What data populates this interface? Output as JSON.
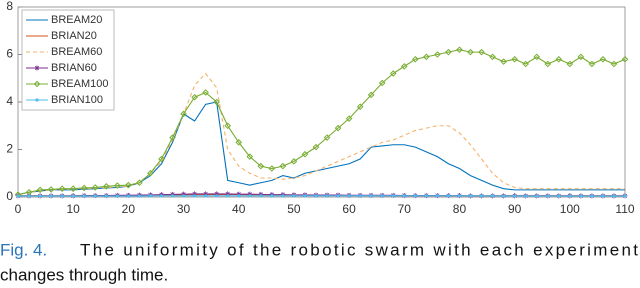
{
  "chart_data": {
    "type": "line",
    "figure_label": "Fig. 4.",
    "caption_lines": [
      "The uniformity of the robotic swarm with each experiment",
      "changes through time."
    ],
    "x": [
      0,
      2,
      4,
      6,
      8,
      10,
      12,
      14,
      16,
      18,
      20,
      22,
      24,
      26,
      28,
      30,
      32,
      34,
      36,
      38,
      40,
      42,
      44,
      46,
      48,
      50,
      52,
      54,
      56,
      58,
      60,
      62,
      64,
      66,
      68,
      70,
      72,
      74,
      76,
      78,
      80,
      82,
      84,
      86,
      88,
      90,
      92,
      94,
      96,
      98,
      100,
      102,
      104,
      106,
      108,
      110
    ],
    "xlim": [
      0,
      110
    ],
    "xticks": [
      0,
      10,
      20,
      30,
      40,
      50,
      60,
      70,
      80,
      90,
      100,
      110
    ],
    "ylim": [
      0,
      8
    ],
    "yticks": [
      0,
      2,
      4,
      6,
      8
    ],
    "legend": "upper-left",
    "series": [
      {
        "name": "BREAM20",
        "color": "#0072bd",
        "dash": false,
        "marker": null,
        "values": [
          0.1,
          0.2,
          0.25,
          0.3,
          0.3,
          0.3,
          0.33,
          0.35,
          0.38,
          0.4,
          0.45,
          0.6,
          0.9,
          1.4,
          2.3,
          3.5,
          3.2,
          3.9,
          4.0,
          0.7,
          0.6,
          0.5,
          0.6,
          0.7,
          0.9,
          0.8,
          1.0,
          1.1,
          1.2,
          1.3,
          1.4,
          1.6,
          2.1,
          2.15,
          2.2,
          2.2,
          2.1,
          1.9,
          1.7,
          1.4,
          1.2,
          0.9,
          0.7,
          0.5,
          0.35,
          0.3,
          0.3,
          0.3,
          0.3,
          0.3,
          0.3,
          0.3,
          0.3,
          0.3,
          0.3,
          0.3
        ]
      },
      {
        "name": "BRIAN20",
        "color": "#d95319",
        "dash": false,
        "marker": null,
        "values": [
          0.05,
          0.05,
          0.05,
          0.05,
          0.05,
          0.05,
          0.05,
          0.05,
          0.05,
          0.05,
          0.05,
          0.06,
          0.06,
          0.07,
          0.08,
          0.09,
          0.1,
          0.1,
          0.1,
          0.1,
          0.1,
          0.09,
          0.09,
          0.08,
          0.08,
          0.07,
          0.07,
          0.07,
          0.06,
          0.06,
          0.06,
          0.06,
          0.06,
          0.05,
          0.05,
          0.05,
          0.05,
          0.05,
          0.05,
          0.05,
          0.05,
          0.05,
          0.05,
          0.05,
          0.05,
          0.05,
          0.05,
          0.05,
          0.05,
          0.05,
          0.05,
          0.05,
          0.05,
          0.05,
          0.05,
          0.05
        ]
      },
      {
        "name": "BREAM60",
        "color": "#f4b26b",
        "dash": true,
        "marker": null,
        "values": [
          0.1,
          0.2,
          0.25,
          0.3,
          0.32,
          0.33,
          0.35,
          0.37,
          0.4,
          0.42,
          0.45,
          0.6,
          1.0,
          1.5,
          2.4,
          3.5,
          4.7,
          5.2,
          4.6,
          2.0,
          1.3,
          1.0,
          0.8,
          0.8,
          0.75,
          0.8,
          0.9,
          1.1,
          1.3,
          1.5,
          1.7,
          1.9,
          2.1,
          2.3,
          2.4,
          2.6,
          2.8,
          2.9,
          3.0,
          3.0,
          2.7,
          2.2,
          1.6,
          1.0,
          0.6,
          0.4,
          0.35,
          0.35,
          0.35,
          0.35,
          0.35,
          0.35,
          0.35,
          0.35,
          0.35,
          0.35
        ]
      },
      {
        "name": "BRIAN60",
        "color": "#7e2f8e",
        "dash": false,
        "marker": "asterisk",
        "values": [
          0.05,
          0.05,
          0.05,
          0.05,
          0.05,
          0.05,
          0.06,
          0.06,
          0.06,
          0.07,
          0.07,
          0.08,
          0.09,
          0.1,
          0.11,
          0.12,
          0.13,
          0.13,
          0.13,
          0.13,
          0.12,
          0.12,
          0.11,
          0.1,
          0.1,
          0.09,
          0.09,
          0.08,
          0.08,
          0.08,
          0.07,
          0.07,
          0.07,
          0.07,
          0.07,
          0.06,
          0.06,
          0.06,
          0.06,
          0.06,
          0.06,
          0.05,
          0.05,
          0.05,
          0.05,
          0.05,
          0.05,
          0.05,
          0.05,
          0.05,
          0.05,
          0.05,
          0.05,
          0.05,
          0.05,
          0.05
        ]
      },
      {
        "name": "BREAM100",
        "color": "#77ac30",
        "dash": false,
        "marker": "diamond",
        "values": [
          0.1,
          0.2,
          0.3,
          0.32,
          0.35,
          0.35,
          0.38,
          0.4,
          0.45,
          0.48,
          0.5,
          0.6,
          1.0,
          1.6,
          2.5,
          3.5,
          4.2,
          4.4,
          4.0,
          3.0,
          2.3,
          1.7,
          1.3,
          1.2,
          1.3,
          1.5,
          1.8,
          2.1,
          2.5,
          2.9,
          3.3,
          3.8,
          4.3,
          4.8,
          5.2,
          5.5,
          5.8,
          5.9,
          6.0,
          6.1,
          6.2,
          6.1,
          6.1,
          5.9,
          5.7,
          5.8,
          5.6,
          5.9,
          5.6,
          5.8,
          5.6,
          5.9,
          5.6,
          5.8,
          5.6,
          5.8
        ]
      },
      {
        "name": "BRIAN100",
        "color": "#4dbeee",
        "dash": false,
        "marker": "dot",
        "values": [
          0.04,
          0.04,
          0.04,
          0.04,
          0.04,
          0.04,
          0.04,
          0.04,
          0.04,
          0.04,
          0.04,
          0.04,
          0.05,
          0.05,
          0.05,
          0.05,
          0.05,
          0.05,
          0.05,
          0.05,
          0.05,
          0.05,
          0.05,
          0.05,
          0.05,
          0.05,
          0.05,
          0.05,
          0.05,
          0.05,
          0.05,
          0.05,
          0.05,
          0.05,
          0.05,
          0.05,
          0.05,
          0.05,
          0.05,
          0.05,
          0.05,
          0.05,
          0.05,
          0.05,
          0.04,
          0.04,
          0.04,
          0.04,
          0.04,
          0.04,
          0.04,
          0.04,
          0.04,
          0.04,
          0.04,
          0.04
        ]
      }
    ]
  }
}
